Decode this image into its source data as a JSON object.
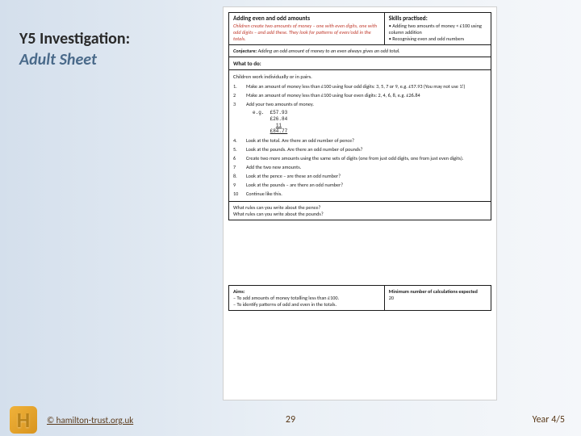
{
  "title": {
    "line1": "Y5 Investigation:",
    "line2": "Adult Sheet"
  },
  "worksheet": {
    "header": {
      "left_title": "Adding even and odd amounts",
      "left_desc": "Children create two amounts of money – one with even digits, one with odd digits – and add these. They look for patterns of even/odd in the totals.",
      "right_title": "Skills practised:",
      "right_bullets": [
        "Adding two amounts of money < £100 using column addition",
        "Recognising even and odd numbers"
      ]
    },
    "conjecture_label": "Conjecture:",
    "conjecture_text": "Adding an odd amount of money to an even always gives an odd total.",
    "what_to_do": "What to do:",
    "children_note": "Children work individually or in pairs.",
    "steps": [
      {
        "n": "1.",
        "t": "Make an amount of money less than £100 using four odd digits: 3, 5, 7 or 9, e.g. £57.93 (You may not use 1!)"
      },
      {
        "n": "2",
        "t": "Make an amount of money less than £100 using four even digits: 2, 4, 6, 8, e.g. £26.84"
      },
      {
        "n": "3",
        "t": "Add your two amounts of money."
      }
    ],
    "calc_label": "e.g.",
    "calc_a": "£57.93",
    "calc_b": "£26.84",
    "calc_carry": "11",
    "calc_total": "£84.77",
    "steps2": [
      {
        "n": "4.",
        "t": "Look at the total. Are there an odd number of pence?"
      },
      {
        "n": "5.",
        "t": "Look at the pounds. Are there an odd number of pounds?"
      },
      {
        "n": "6",
        "t": "Create two more amounts using the same sets of digits (one from just odd digits, one from just even digits)."
      },
      {
        "n": "7",
        "t": "Add the two new amounts."
      },
      {
        "n": "8.",
        "t": "Look at the pence – are these an odd number?"
      },
      {
        "n": "9",
        "t": "Look at the pounds – are there an odd number?"
      },
      {
        "n": "10",
        "t": "Continue like this."
      }
    ],
    "rules_q1": "What rules can you write about the pence?",
    "rules_q2": "What rules can you write about the pounds?",
    "aims": {
      "title": "Aims:",
      "bullets": [
        "To add amounts of money totalling less than £100.",
        "To identify patterns of odd and even in the totals."
      ],
      "min_label": "Minimum number of calculations expected",
      "min_value": "20"
    }
  },
  "footer": {
    "link": "© hamilton-trust.org.uk",
    "page": "29",
    "year": "Year 4/5"
  }
}
